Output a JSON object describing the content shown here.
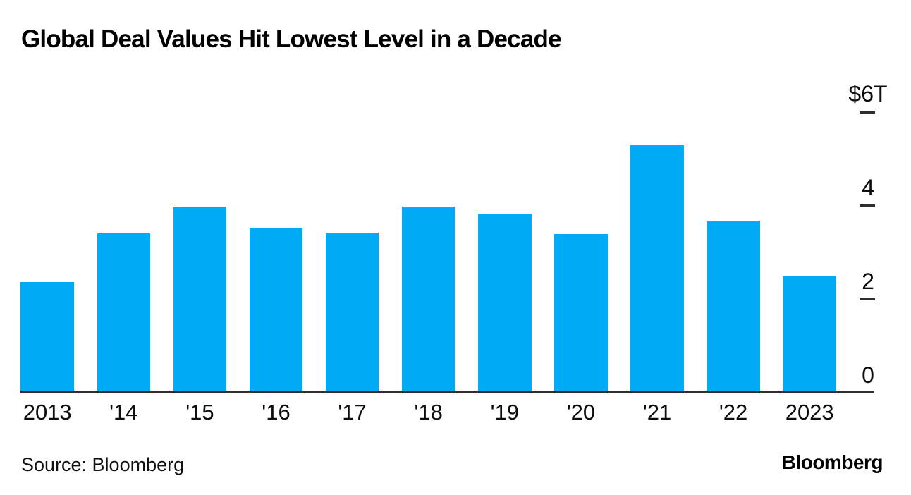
{
  "title": "Global Deal Values Hit Lowest Level in a Decade",
  "footer": {
    "source": "Source: Bloomberg",
    "brand": "Bloomberg"
  },
  "colors": {
    "bar": "#00AAF5",
    "axis": "#2E2E2E"
  },
  "chart_data": {
    "type": "bar",
    "title": "Global Deal Values Hit Lowest Level in a Decade",
    "categories": [
      "2013",
      "'14",
      "'15",
      "'16",
      "'17",
      "'18",
      "'19",
      "'20",
      "'21",
      "'22",
      "2023"
    ],
    "values": [
      2.37,
      3.41,
      3.97,
      3.53,
      3.43,
      3.98,
      3.83,
      3.4,
      5.31,
      3.68,
      2.49
    ],
    "xlabel": "",
    "ylabel": "",
    "ylim": [
      0,
      6
    ],
    "yticks": [
      {
        "label": "$6T",
        "value": 6,
        "dash": true
      },
      {
        "label": "4",
        "value": 4,
        "dash": true
      },
      {
        "label": "2",
        "value": 2,
        "dash": true
      },
      {
        "label": "0",
        "value": 0,
        "dash": false
      }
    ],
    "grid": false,
    "legend": "none",
    "bar_color": "#00AAF5"
  }
}
